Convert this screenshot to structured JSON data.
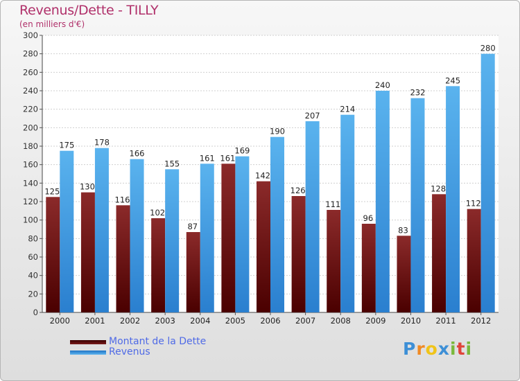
{
  "chart_data": {
    "type": "bar",
    "title": "Revenus/Dette - TILLY",
    "subtitle": "(en milliers d'€)",
    "categories": [
      "2000",
      "2001",
      "2002",
      "2003",
      "2004",
      "2005",
      "2006",
      "2007",
      "2008",
      "2009",
      "2010",
      "2011",
      "2012"
    ],
    "series": [
      {
        "name": "Montant de la Dette",
        "color": "#7a1a1a",
        "values": [
          125,
          130,
          116,
          102,
          87,
          161,
          142,
          126,
          111,
          96,
          83,
          128,
          112
        ]
      },
      {
        "name": "Revenus",
        "color": "#3d9ee8",
        "values": [
          175,
          178,
          166,
          155,
          161,
          169,
          190,
          207,
          214,
          240,
          232,
          245,
          280
        ]
      }
    ],
    "ylim": [
      0,
      300
    ],
    "yticks": [
      0,
      20,
      40,
      60,
      80,
      100,
      120,
      140,
      160,
      180,
      200,
      220,
      240,
      260,
      280,
      300
    ],
    "grid": true,
    "legend": "bottom-left"
  },
  "logo": {
    "letters": [
      "P",
      "r",
      "o",
      "x",
      "i",
      "t",
      "i"
    ]
  }
}
